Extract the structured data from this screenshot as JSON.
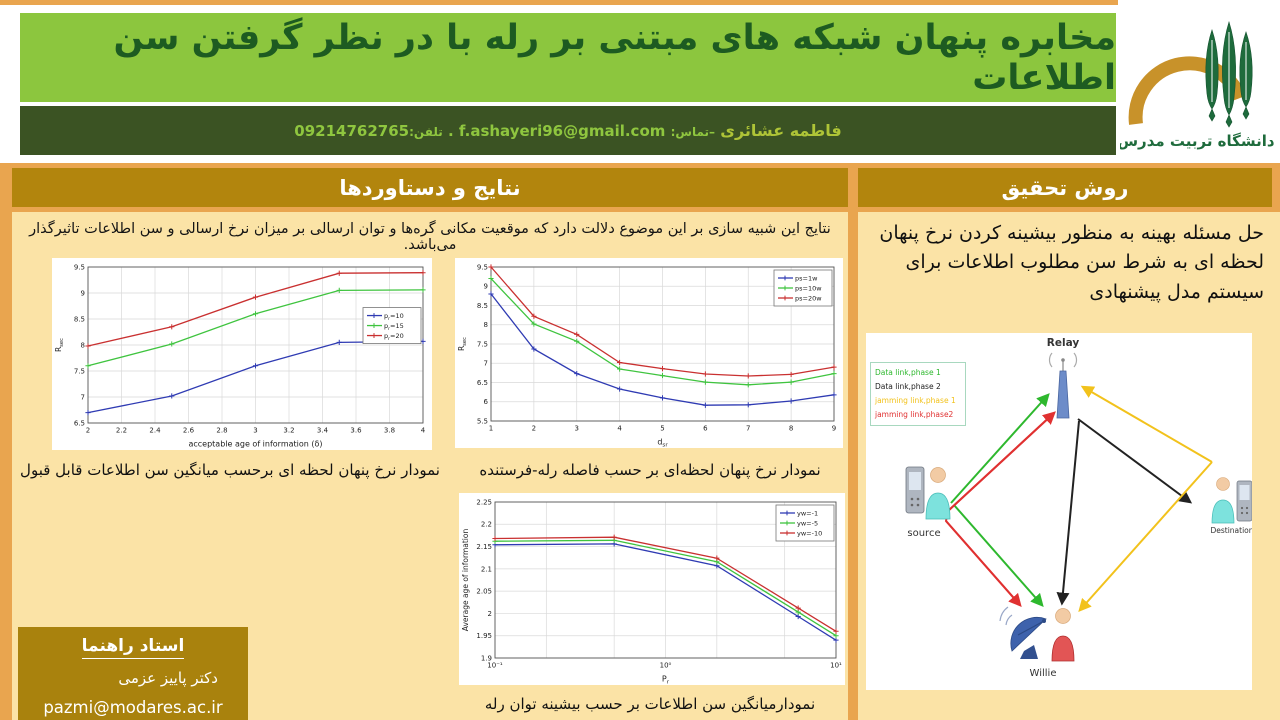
{
  "header": {
    "title": "مخابره پنهان شبکه های مبتنی بر رله با در نظر گرفتن سن اطلاعات",
    "author": {
      "name": "فاطمه عشائری",
      "contact_label": "–تماس:",
      "email": "f.ashayeri96@gmail.com",
      "dot": ".",
      "phone_label": "تلفن:",
      "phone": "09214762765"
    },
    "university_name": "دانشگاه تربیت مدرس"
  },
  "left_panel": {
    "header": "نتایج و دستاوردها",
    "paragraph": "نتایج این شبیه سازی بر این موضوع دلالت دارد که موقعیت مکانی گره‌ها و توان ارسالی بر میزان نرخ ارسالی و سن اطلاعات  تاثیرگذار می‌باشد.",
    "caption_chart1": "نمودار نرخ پنهان لحظه ای برحسب میانگین سن اطلاعات قابل قبول",
    "caption_chart2": "نمودار نرخ پنهان لحظه‌ای بر حسب فاصله رله-فرستنده",
    "caption_chart3": "نمودارمیانگین سن اطلاعات بر حسب بیشینه توان رله",
    "supervisor": {
      "title": "استاد راهنما",
      "name": "دکتر پاییز عزمی",
      "email": "pazmi@modares.ac.ir"
    }
  },
  "right_panel": {
    "header": "روش تحقیق",
    "paragraph": "حل مسئله بهینه به منظور بیشینه کردن نرخ پنهان لحظه ای به شرط سن مطلوب اطلاعات برای سیستم مدل پیشنهادی",
    "diagram": {
      "nodes": {
        "relay": "Relay",
        "source": "source",
        "destination": "Destination",
        "willie": "Willie"
      },
      "legend": [
        {
          "label": "Data link,phase 1",
          "color": "#2eb82e"
        },
        {
          "label": "Data link,phase 2",
          "color": "#222222"
        },
        {
          "label": "jamming link,phase 1",
          "color": "#f2c21c"
        },
        {
          "label": "jamming link,phase2",
          "color": "#e03131"
        }
      ]
    }
  },
  "chart_data": [
    {
      "type": "line",
      "x": [
        2,
        2.5,
        3,
        3.5,
        4
      ],
      "series": [
        {
          "name": "p_r=10",
          "color": "#2f3bb3",
          "values": [
            6.7,
            7.02,
            7.6,
            8.05,
            8.07
          ]
        },
        {
          "name": "p_r=15",
          "color": "#3fc43f",
          "values": [
            7.6,
            8.02,
            8.6,
            9.05,
            9.06
          ]
        },
        {
          "name": "p_r=20",
          "color": "#c93030",
          "values": [
            7.98,
            8.35,
            8.92,
            9.38,
            9.39
          ]
        }
      ],
      "xlabel": "acceptable age of information (δ)",
      "ylabel": "R_sec",
      "xlim": [
        2,
        4
      ],
      "ylim": [
        6.5,
        9.5
      ],
      "xticks": [
        2,
        2.2,
        2.4,
        2.6,
        2.8,
        3,
        3.2,
        3.4,
        3.6,
        3.8,
        4
      ],
      "yticks": [
        6.5,
        7,
        7.5,
        8,
        8.5,
        9,
        9.5
      ],
      "grid": true,
      "legend_pos": "right"
    },
    {
      "type": "line",
      "x": [
        1,
        2,
        3,
        4,
        5,
        6,
        7,
        8,
        9
      ],
      "series": [
        {
          "name": "ps=1w",
          "color": "#2f3bb3",
          "values": [
            8.8,
            7.37,
            6.73,
            6.33,
            6.1,
            5.91,
            5.92,
            6.02,
            6.18
          ]
        },
        {
          "name": "ps=10w",
          "color": "#3fc43f",
          "values": [
            9.2,
            8.02,
            7.57,
            6.85,
            6.68,
            6.51,
            6.44,
            6.51,
            6.73
          ]
        },
        {
          "name": "ps=20w",
          "color": "#c93030",
          "values": [
            9.5,
            8.22,
            7.75,
            7.02,
            6.86,
            6.72,
            6.67,
            6.71,
            6.9
          ]
        }
      ],
      "xlabel": "d_sr",
      "ylabel": "R_sec",
      "xlim": [
        1,
        9
      ],
      "ylim": [
        5.5,
        9.5
      ],
      "xticks": [
        1,
        2,
        3,
        4,
        5,
        6,
        7,
        8,
        9
      ],
      "yticks": [
        5.5,
        6,
        6.5,
        7,
        7.5,
        8,
        8.5,
        9,
        9.5
      ],
      "grid": true,
      "legend_pos": "topright"
    },
    {
      "type": "line",
      "xscale": "log",
      "x": [
        0.1,
        0.5,
        2,
        6,
        10
      ],
      "series": [
        {
          "name": "yw=-1",
          "color": "#2f3bb3",
          "values": [
            2.154,
            2.156,
            2.107,
            1.993,
            1.94
          ]
        },
        {
          "name": "yw=-5",
          "color": "#3fc43f",
          "values": [
            2.162,
            2.164,
            2.116,
            2.003,
            1.95
          ]
        },
        {
          "name": "yw=-10",
          "color": "#c93030",
          "values": [
            2.168,
            2.171,
            2.124,
            2.012,
            1.96
          ]
        }
      ],
      "xlabel": "P_r",
      "ylabel": "Average age of information",
      "xlim": [
        0.1,
        10
      ],
      "ylim": [
        1.9,
        2.25
      ],
      "xticks": [
        0.1,
        1,
        10
      ],
      "xtick_labels": [
        "10⁻¹",
        "10⁰",
        "10¹"
      ],
      "xgrid": [
        0.1,
        0.2,
        0.5,
        1,
        2,
        5,
        10
      ],
      "yticks": [
        1.9,
        1.95,
        2,
        2.05,
        2.1,
        2.15,
        2.2,
        2.25
      ],
      "grid": true,
      "legend_pos": "topright"
    }
  ],
  "colors": {
    "page_border": "#E9A54F",
    "title_band": "#8CC63E",
    "title_text": "#1D5B21",
    "author_band": "#3B5323",
    "author_text": "#8FC63F",
    "section_bar": "#B2850D",
    "panel_bg": "#FBE3A6",
    "supervisor_bg": "#A9820D",
    "logo_green": "#1E6B3C",
    "logo_gold": "#C8922A"
  }
}
